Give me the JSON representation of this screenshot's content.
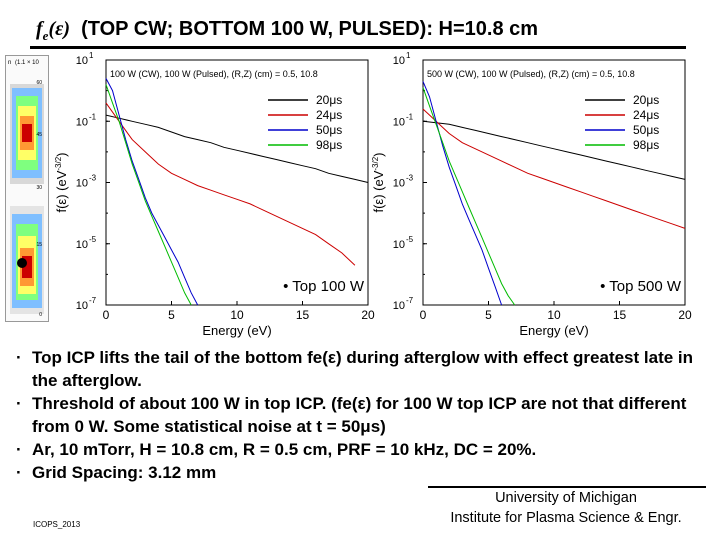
{
  "slide": {
    "title_prefix": "f",
    "title_sub": "e",
    "title_arg": "(ε)",
    "title_rest": "(TOP CW; BOTTOM 100 W, PULSED): H=10.8 cm",
    "bullets": [
      {
        "text": "Top ICP lifts the tail of the bottom fe(ε)  during afterglow with effect greatest late in the afterglow."
      },
      {
        "text": "Threshold of about 100 W in top ICP. (fe(ε)  for 100 W top ICP are not that different from 0 W. Some statistical noise at t = 50μs)"
      },
      {
        "text": "Ar, 10 mTorr, H = 10.8 cm, R = 0.5 cm, PRF = 10 kHz, DC = 20%."
      },
      {
        "text": "Grid Spacing: 3.12 mm"
      }
    ],
    "bullet_char": "·",
    "affiliation_line1": "University of Michigan",
    "affiliation_line2": "Institute for Plasma Science & Engr.",
    "footer_tag": "ICOPS_2013"
  },
  "thumb": {
    "top_label": "n",
    "scale_label": "(1.1 × 10",
    "tick_1": "60",
    "tick_2": "45",
    "tick_3": "30",
    "tick_4": "15",
    "tick_5": "0"
  },
  "colors": {
    "20us": "#000000",
    "24us": "#cc0000",
    "50us": "#0000cc",
    "98us": "#00bb00"
  },
  "chart_data": [
    {
      "type": "line",
      "header": "100 W (CW), 100 W (Pulsed), (R,Z) (cm) = 0.5, 10.8",
      "panel_note": "Top 100 W",
      "xlabel": "Energy (eV)",
      "ylabel": "f(ε) (eV",
      "ylabel_exp": "-3/2",
      "ylabel_close": ")",
      "xlim": [
        0,
        20
      ],
      "ylim_exp": [
        -7,
        1
      ],
      "yscale": "log",
      "x_ticks": [
        "0",
        "5",
        "10",
        "15",
        "20"
      ],
      "y_ticks": [
        "10",
        "10",
        "10",
        "10",
        "10"
      ],
      "y_tick_exps": [
        "1",
        "-1",
        "-3",
        "-5",
        "-7"
      ],
      "series": [
        {
          "name": "20μs",
          "color_key": "20us",
          "x": [
            0,
            1,
            2,
            3,
            4,
            5,
            6,
            7,
            8,
            9,
            10,
            11,
            12,
            13,
            14,
            15,
            16,
            17,
            18,
            19,
            20
          ],
          "log10y": [
            -0.8,
            -0.9,
            -1.0,
            -1.1,
            -1.2,
            -1.35,
            -1.5,
            -1.6,
            -1.7,
            -1.85,
            -1.95,
            -2.05,
            -2.15,
            -2.25,
            -2.35,
            -2.45,
            -2.55,
            -2.7,
            -2.8,
            -2.9,
            -3.0
          ]
        },
        {
          "name": "24μs",
          "color_key": "24us",
          "x": [
            0,
            1,
            2,
            3,
            4,
            5,
            6,
            7,
            8,
            9,
            10,
            11,
            12,
            13,
            14,
            15,
            16,
            17,
            18,
            19
          ],
          "log10y": [
            -0.4,
            -1.0,
            -1.6,
            -2.0,
            -2.4,
            -2.7,
            -2.9,
            -3.1,
            -3.25,
            -3.4,
            -3.55,
            -3.7,
            -3.9,
            -4.1,
            -4.3,
            -4.5,
            -4.7,
            -5.0,
            -5.3,
            -5.7
          ]
        },
        {
          "name": "50μs",
          "color_key": "50us",
          "x": [
            0,
            0.5,
            1,
            1.5,
            2,
            2.5,
            3,
            3.5,
            4,
            4.5,
            5,
            5.5,
            6,
            6.5,
            7
          ],
          "log10y": [
            0.4,
            0.0,
            -0.8,
            -1.6,
            -2.3,
            -2.9,
            -3.5,
            -4.0,
            -4.4,
            -4.8,
            -5.2,
            -5.6,
            -6.1,
            -6.6,
            -7.0
          ]
        },
        {
          "name": "98μs",
          "color_key": "98us",
          "x": [
            0,
            0.5,
            1,
            1.5,
            2,
            2.5,
            3,
            3.5,
            4,
            4.5,
            5,
            5.5,
            6,
            6.5
          ],
          "log10y": [
            0.2,
            -0.4,
            -1.0,
            -1.7,
            -2.4,
            -3.0,
            -3.6,
            -4.1,
            -4.6,
            -5.1,
            -5.6,
            -6.1,
            -6.6,
            -7.0
          ]
        }
      ]
    },
    {
      "type": "line",
      "header": "500 W (CW), 100 W (Pulsed), (R,Z) (cm) = 0.5, 10.8",
      "panel_note": "Top 500 W",
      "xlabel": "Energy (eV)",
      "ylabel": "f(ε) (eV",
      "ylabel_exp": "-3/2",
      "ylabel_close": ")",
      "xlim": [
        0,
        20
      ],
      "ylim_exp": [
        -7,
        1
      ],
      "yscale": "log",
      "x_ticks": [
        "0",
        "5",
        "10",
        "15",
        "20"
      ],
      "y_ticks": [
        "10",
        "10",
        "10",
        "10",
        "10"
      ],
      "y_tick_exps": [
        "1",
        "-1",
        "-3",
        "-5",
        "-7"
      ],
      "series": [
        {
          "name": "20μs",
          "color_key": "20us",
          "x": [
            0,
            1,
            2,
            3,
            4,
            5,
            6,
            7,
            8,
            9,
            10,
            11,
            12,
            13,
            14,
            15,
            16,
            17,
            18,
            19,
            20
          ],
          "log10y": [
            -1.0,
            -1.05,
            -1.1,
            -1.2,
            -1.3,
            -1.4,
            -1.5,
            -1.6,
            -1.7,
            -1.8,
            -1.9,
            -2.0,
            -2.1,
            -2.2,
            -2.3,
            -2.4,
            -2.5,
            -2.6,
            -2.7,
            -2.8,
            -2.9
          ]
        },
        {
          "name": "24μs",
          "color_key": "24us",
          "x": [
            0,
            1,
            2,
            3,
            4,
            5,
            6,
            7,
            8,
            9,
            10,
            11,
            12,
            13,
            14,
            15,
            16,
            17,
            18,
            19,
            20
          ],
          "log10y": [
            -0.6,
            -1.0,
            -1.4,
            -1.7,
            -1.9,
            -2.1,
            -2.3,
            -2.5,
            -2.7,
            -2.85,
            -3.0,
            -3.15,
            -3.3,
            -3.45,
            -3.6,
            -3.75,
            -3.9,
            -4.05,
            -4.2,
            -4.35,
            -4.5
          ]
        },
        {
          "name": "50μs",
          "color_key": "50us",
          "x": [
            0,
            0.5,
            1,
            1.5,
            2,
            2.5,
            3,
            3.5,
            4,
            4.5,
            5,
            5.5,
            6
          ],
          "log10y": [
            0.3,
            -0.2,
            -1.0,
            -1.8,
            -2.5,
            -3.1,
            -3.7,
            -4.2,
            -4.7,
            -5.2,
            -5.8,
            -6.4,
            -7.0
          ]
        },
        {
          "name": "98μs",
          "color_key": "98us",
          "x": [
            0,
            0.5,
            1,
            1.5,
            2,
            2.5,
            3,
            3.5,
            4,
            4.5,
            5,
            5.5,
            6,
            6.5,
            7
          ],
          "log10y": [
            0.1,
            -0.5,
            -1.1,
            -1.7,
            -2.3,
            -2.8,
            -3.3,
            -3.8,
            -4.3,
            -4.8,
            -5.3,
            -5.8,
            -6.3,
            -6.7,
            -7.0
          ]
        }
      ]
    }
  ]
}
